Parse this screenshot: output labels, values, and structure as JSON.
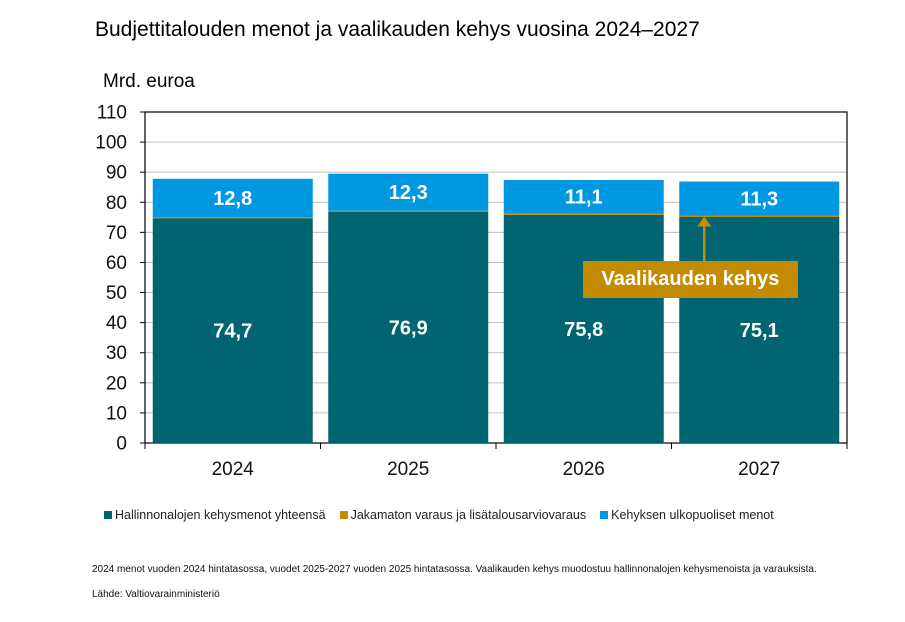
{
  "chart_data": {
    "type": "bar",
    "stacked": true,
    "title": "Budjettitalouden menot ja vaalikauden kehys vuosina 2024–2027",
    "ylabel": "Mrd. euroa",
    "xlabel": "",
    "ylim": [
      0,
      110
    ],
    "yticks": [
      0,
      10,
      20,
      30,
      40,
      50,
      60,
      70,
      80,
      90,
      100,
      110
    ],
    "grid": true,
    "legend_position": "bottom",
    "categories": [
      "2024",
      "2025",
      "2026",
      "2027"
    ],
    "series": [
      {
        "name": "Hallinnonalojen kehysmenot yhteensä",
        "color": "#006471",
        "values": [
          74.7,
          76.9,
          75.8,
          75.1
        ],
        "labels": [
          "74,7",
          "76,9",
          "75,8",
          "75,1"
        ]
      },
      {
        "name": "Jakamaton varaus ja lisätalousarviovaraus",
        "color": "#C48A00",
        "values": [
          0.3,
          0.3,
          0.5,
          0.5
        ],
        "labels": [
          "",
          "",
          "",
          ""
        ]
      },
      {
        "name": "Kehyksen ulkopuoliset menot",
        "color": "#0098E0",
        "values": [
          12.8,
          12.3,
          11.1,
          11.3
        ],
        "labels": [
          "12,8",
          "12,3",
          "11,1",
          "11,3"
        ]
      }
    ],
    "annotation": {
      "text": "Vaalikauden kehys",
      "category": "2027",
      "color": "#C48A00"
    }
  },
  "footnote": "2024 menot vuoden 2024 hintatasossa, vuodet 2025-2027 vuoden 2025 hintatasossa. Vaalikauden kehys muodostuu hallinnonalojen kehysmenoista ja varauksista.",
  "source": "Lähde: Valtiovarainministeriö"
}
